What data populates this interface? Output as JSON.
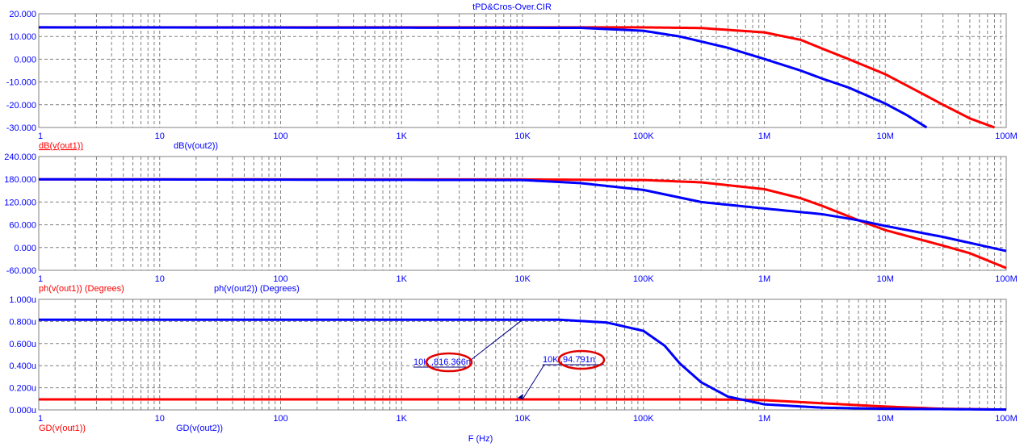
{
  "chart_data": {
    "type": "line",
    "title": "tPD&Cros-Over.CIR",
    "xlabel": "F (Hz)",
    "xscale": "log",
    "xlim": [
      1,
      100000000
    ],
    "x_ticks": [
      {
        "v": 1,
        "l": "1"
      },
      {
        "v": 10,
        "l": "10"
      },
      {
        "v": 100,
        "l": "100"
      },
      {
        "v": 1000,
        "l": "1K"
      },
      {
        "v": 10000,
        "l": "10K"
      },
      {
        "v": 100000,
        "l": "100K"
      },
      {
        "v": 1000000,
        "l": "1M"
      },
      {
        "v": 10000000,
        "l": "10M"
      },
      {
        "v": 100000000,
        "l": "100M"
      }
    ],
    "colors": {
      "out1": "#ff0000",
      "out2": "#0000ff",
      "axis": "#0000ff",
      "grid": "#808080"
    },
    "grid": true,
    "panels": [
      {
        "ylim": [
          -30,
          20
        ],
        "y_ticks": [
          "20.000",
          "10.000",
          "0.000",
          "-10.000",
          "-20.000",
          "-30.000"
        ],
        "legend": [
          "dB(v(out1))",
          "dB(v(out2))"
        ],
        "series": [
          {
            "name": "dB(v(out1))",
            "color": "#ff0000",
            "points": [
              [
                1,
                14
              ],
              [
                100000,
                14
              ],
              [
                300000,
                13.7
              ],
              [
                1000000,
                11.8
              ],
              [
                2000000,
                8.5
              ],
              [
                3000000,
                4.7
              ],
              [
                5000000,
                0
              ],
              [
                10000000,
                -6.6
              ],
              [
                20000000,
                -15
              ],
              [
                30000000,
                -20
              ],
              [
                50000000,
                -26
              ],
              [
                80000000,
                -30
              ]
            ]
          },
          {
            "name": "dB(v(out2))",
            "color": "#0000ff",
            "points": [
              [
                1,
                14
              ],
              [
                30000,
                13.8
              ],
              [
                100000,
                12.5
              ],
              [
                200000,
                10
              ],
              [
                500000,
                5
              ],
              [
                1000000,
                0.1
              ],
              [
                2000000,
                -5
              ],
              [
                3000000,
                -8.5
              ],
              [
                5000000,
                -12.5
              ],
              [
                10000000,
                -19.5
              ],
              [
                15000000,
                -24.5
              ],
              [
                22000000,
                -30
              ]
            ]
          }
        ]
      },
      {
        "ylim": [
          -60,
          240
        ],
        "y_ticks": [
          "240.000",
          "180.000",
          "120.000",
          "60.000",
          "0.000",
          "-60.000"
        ],
        "legend": [
          "ph(v(out1)) (Degrees)",
          "ph(v(out2)) (Degrees)"
        ],
        "series": [
          {
            "name": "ph(v(out1))",
            "color": "#ff0000",
            "points": [
              [
                1,
                180
              ],
              [
                10000,
                179.5
              ],
              [
                100000,
                178
              ],
              [
                300000,
                172
              ],
              [
                1000000,
                154
              ],
              [
                2000000,
                130
              ],
              [
                3000000,
                110
              ],
              [
                6000000,
                72
              ],
              [
                10000000,
                46
              ],
              [
                30000000,
                5
              ],
              [
                50000000,
                -15
              ],
              [
                100000000,
                -54
              ]
            ]
          },
          {
            "name": "ph(v(out2))",
            "color": "#0000ff",
            "points": [
              [
                1,
                180
              ],
              [
                10000,
                178
              ],
              [
                30000,
                170
              ],
              [
                100000,
                152
              ],
              [
                300000,
                120
              ],
              [
                1000000,
                103
              ],
              [
                3000000,
                88
              ],
              [
                6000000,
                72
              ],
              [
                10000000,
                57
              ],
              [
                30000000,
                28
              ],
              [
                100000000,
                -9
              ]
            ]
          }
        ]
      },
      {
        "ylim": [
          0,
          1.0
        ],
        "y_ticks": [
          "1.000u",
          "0.800u",
          "0.600u",
          "0.400u",
          "0.200u",
          "0.000u"
        ],
        "legend": [
          "GD(v(out1))",
          "GD(v(out2))"
        ],
        "series": [
          {
            "name": "GD(v(out1))",
            "color": "#ff0000",
            "points": [
              [
                1,
                0.0948
              ],
              [
                300000,
                0.0945
              ],
              [
                700000,
                0.092
              ],
              [
                1000000,
                0.088
              ],
              [
                3000000,
                0.06
              ],
              [
                10000000,
                0.03
              ],
              [
                30000000,
                0.01
              ],
              [
                100000000,
                0.003
              ]
            ]
          },
          {
            "name": "GD(v(out2))",
            "color": "#0000ff",
            "points": [
              [
                1,
                0.816
              ],
              [
                20000,
                0.816
              ],
              [
                50000,
                0.79
              ],
              [
                100000,
                0.715
              ],
              [
                150000,
                0.58
              ],
              [
                200000,
                0.42
              ],
              [
                300000,
                0.25
              ],
              [
                500000,
                0.12
              ],
              [
                1000000,
                0.05
              ],
              [
                3000000,
                0.02
              ],
              [
                10000000,
                0.01
              ],
              [
                100000000,
                0.003
              ]
            ]
          }
        ],
        "annotations": [
          {
            "x_label": "10K",
            "value": "816.366n",
            "target_f": 10000,
            "target_v": 0.816
          },
          {
            "x_label": "10K",
            "value": "94.791n",
            "target_f": 10000,
            "target_v": 0.0948
          }
        ]
      }
    ]
  }
}
